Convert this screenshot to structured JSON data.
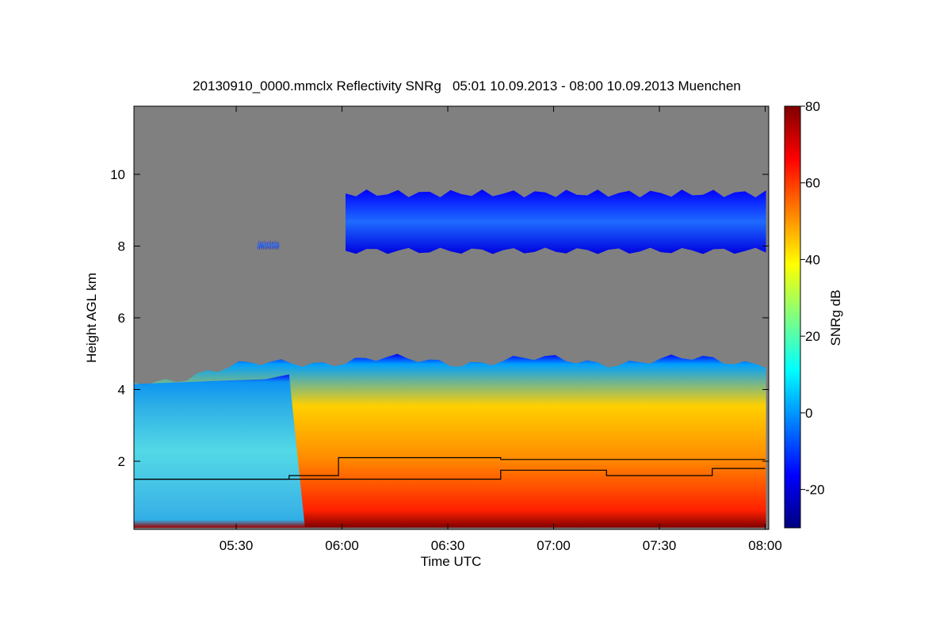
{
  "chart_data": {
    "type": "heatmap",
    "title": "20130910_0000.mmclx Reflectivity SNRg   05:01 10.09.2013 - 08:00 10.09.2013 Muenchen",
    "xlabel": "Time UTC",
    "ylabel": "Height AGL km",
    "x_ticks": [
      "05:30",
      "06:00",
      "06:30",
      "07:00",
      "07:30",
      "08:00"
    ],
    "y_ticks": [
      "2",
      "4",
      "6",
      "8",
      "10"
    ],
    "xlim": [
      "05:01",
      "08:01"
    ],
    "ylim": [
      0.1,
      11.9
    ],
    "colorbar": {
      "label": "SNRg dB",
      "ticks": [
        "-20",
        "0",
        "20",
        "40",
        "60",
        "80"
      ],
      "range": [
        -30,
        80
      ],
      "colormap": [
        "#00007f",
        "#0000ff",
        "#0080ff",
        "#00ffff",
        "#80ff80",
        "#ffff00",
        "#ff8000",
        "#ff0000",
        "#7f0000"
      ]
    },
    "no_signal_color": "#808080",
    "regions": [
      {
        "name": "precipitation layer",
        "time_start": "05:01",
        "time_end": "08:00",
        "base_km": 0.15,
        "top_km": 4.2,
        "top_max_km": 5.0,
        "snr_range_db": [
          -20,
          75
        ]
      },
      {
        "name": "upper cloud layer",
        "time_start": "06:01",
        "time_end": "08:00",
        "base_km": 7.8,
        "top_km": 9.6,
        "snr_range_db": [
          -25,
          10
        ]
      },
      {
        "name": "upper cloud fragment",
        "time_start": "05:36",
        "time_end": "05:42",
        "base_km": 7.9,
        "top_km": 8.2,
        "snr_range_db": [
          -20,
          -10
        ]
      }
    ],
    "overlay_lines": [
      {
        "name": "step line 1",
        "points": [
          [
            "05:01",
            1.5
          ],
          [
            "05:45",
            1.5
          ],
          [
            "05:45",
            1.6
          ],
          [
            "05:59",
            1.6
          ],
          [
            "05:59",
            2.1
          ],
          [
            "06:45",
            2.1
          ],
          [
            "06:45",
            2.05
          ],
          [
            "08:00",
            2.05
          ]
        ]
      },
      {
        "name": "step line 2",
        "points": [
          [
            "05:01",
            1.5
          ],
          [
            "06:45",
            1.5
          ],
          [
            "06:45",
            1.75
          ],
          [
            "07:15",
            1.75
          ],
          [
            "07:15",
            1.6
          ],
          [
            "07:45",
            1.6
          ],
          [
            "07:45",
            1.8
          ],
          [
            "08:00",
            1.8
          ]
        ]
      }
    ]
  }
}
